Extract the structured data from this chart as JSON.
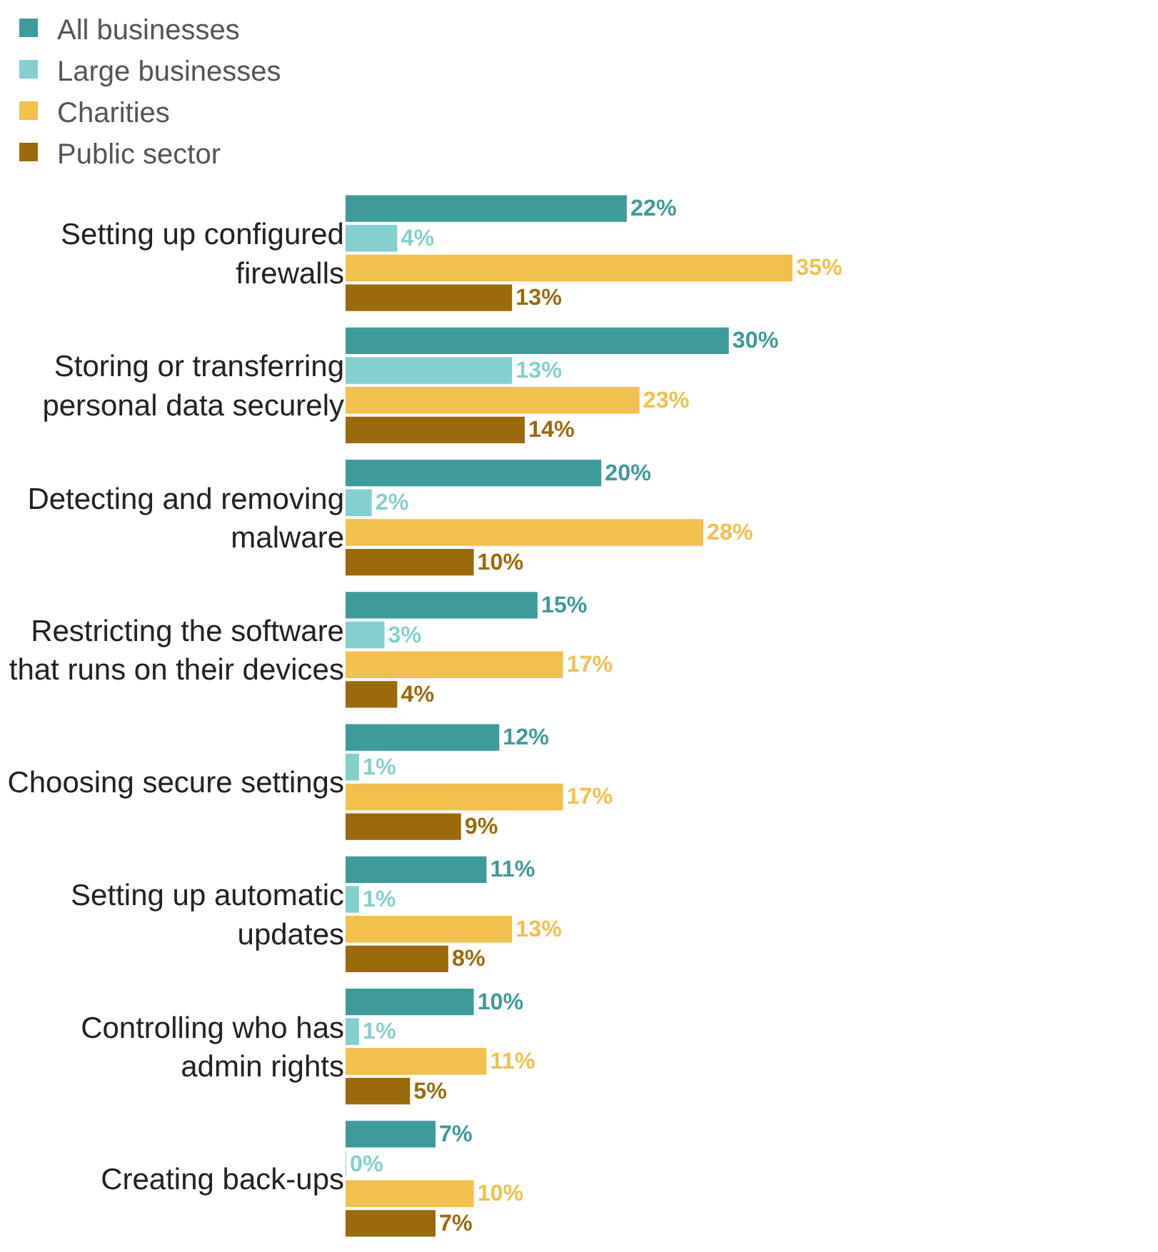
{
  "chart_data": {
    "type": "bar",
    "orientation": "horizontal",
    "legend": "top",
    "categories": [
      "Setting up configured\nfirewalls",
      "Storing or transferring\npersonal data securely",
      "Detecting and removing\nmalware",
      "Restricting the software\nthat runs on their devices",
      "Choosing secure settings",
      "Setting up automatic\nupdates",
      "Controlling who has\nadmin rights",
      "Creating back-ups"
    ],
    "series": [
      {
        "name": "All businesses",
        "color": "#3f9a9a",
        "values": [
          22,
          30,
          20,
          15,
          12,
          11,
          10,
          7
        ],
        "value_labels": [
          "22%",
          "30%",
          "20%",
          "15%",
          "12%",
          "11%",
          "10%",
          "7%"
        ]
      },
      {
        "name": "Large businesses",
        "color": "#86cfcf",
        "values": [
          4,
          13,
          2,
          3,
          1,
          1,
          1,
          0
        ],
        "value_labels": [
          "4%",
          "13%",
          "2%",
          "3%",
          "1%",
          "1%",
          "1%",
          "0%"
        ]
      },
      {
        "name": "Charities",
        "color": "#f2c04c",
        "values": [
          35,
          23,
          28,
          17,
          17,
          13,
          11,
          10
        ],
        "value_labels": [
          "35%",
          "23%",
          "28%",
          "17%",
          "17%",
          "13%",
          "11%",
          "10%"
        ]
      },
      {
        "name": "Public sector",
        "color": "#9a6a0c",
        "values": [
          13,
          14,
          10,
          4,
          9,
          8,
          5,
          7
        ],
        "value_labels": [
          "13%",
          "14%",
          "10%",
          "4%",
          "9%",
          "8%",
          "5%",
          "7%"
        ]
      }
    ]
  }
}
